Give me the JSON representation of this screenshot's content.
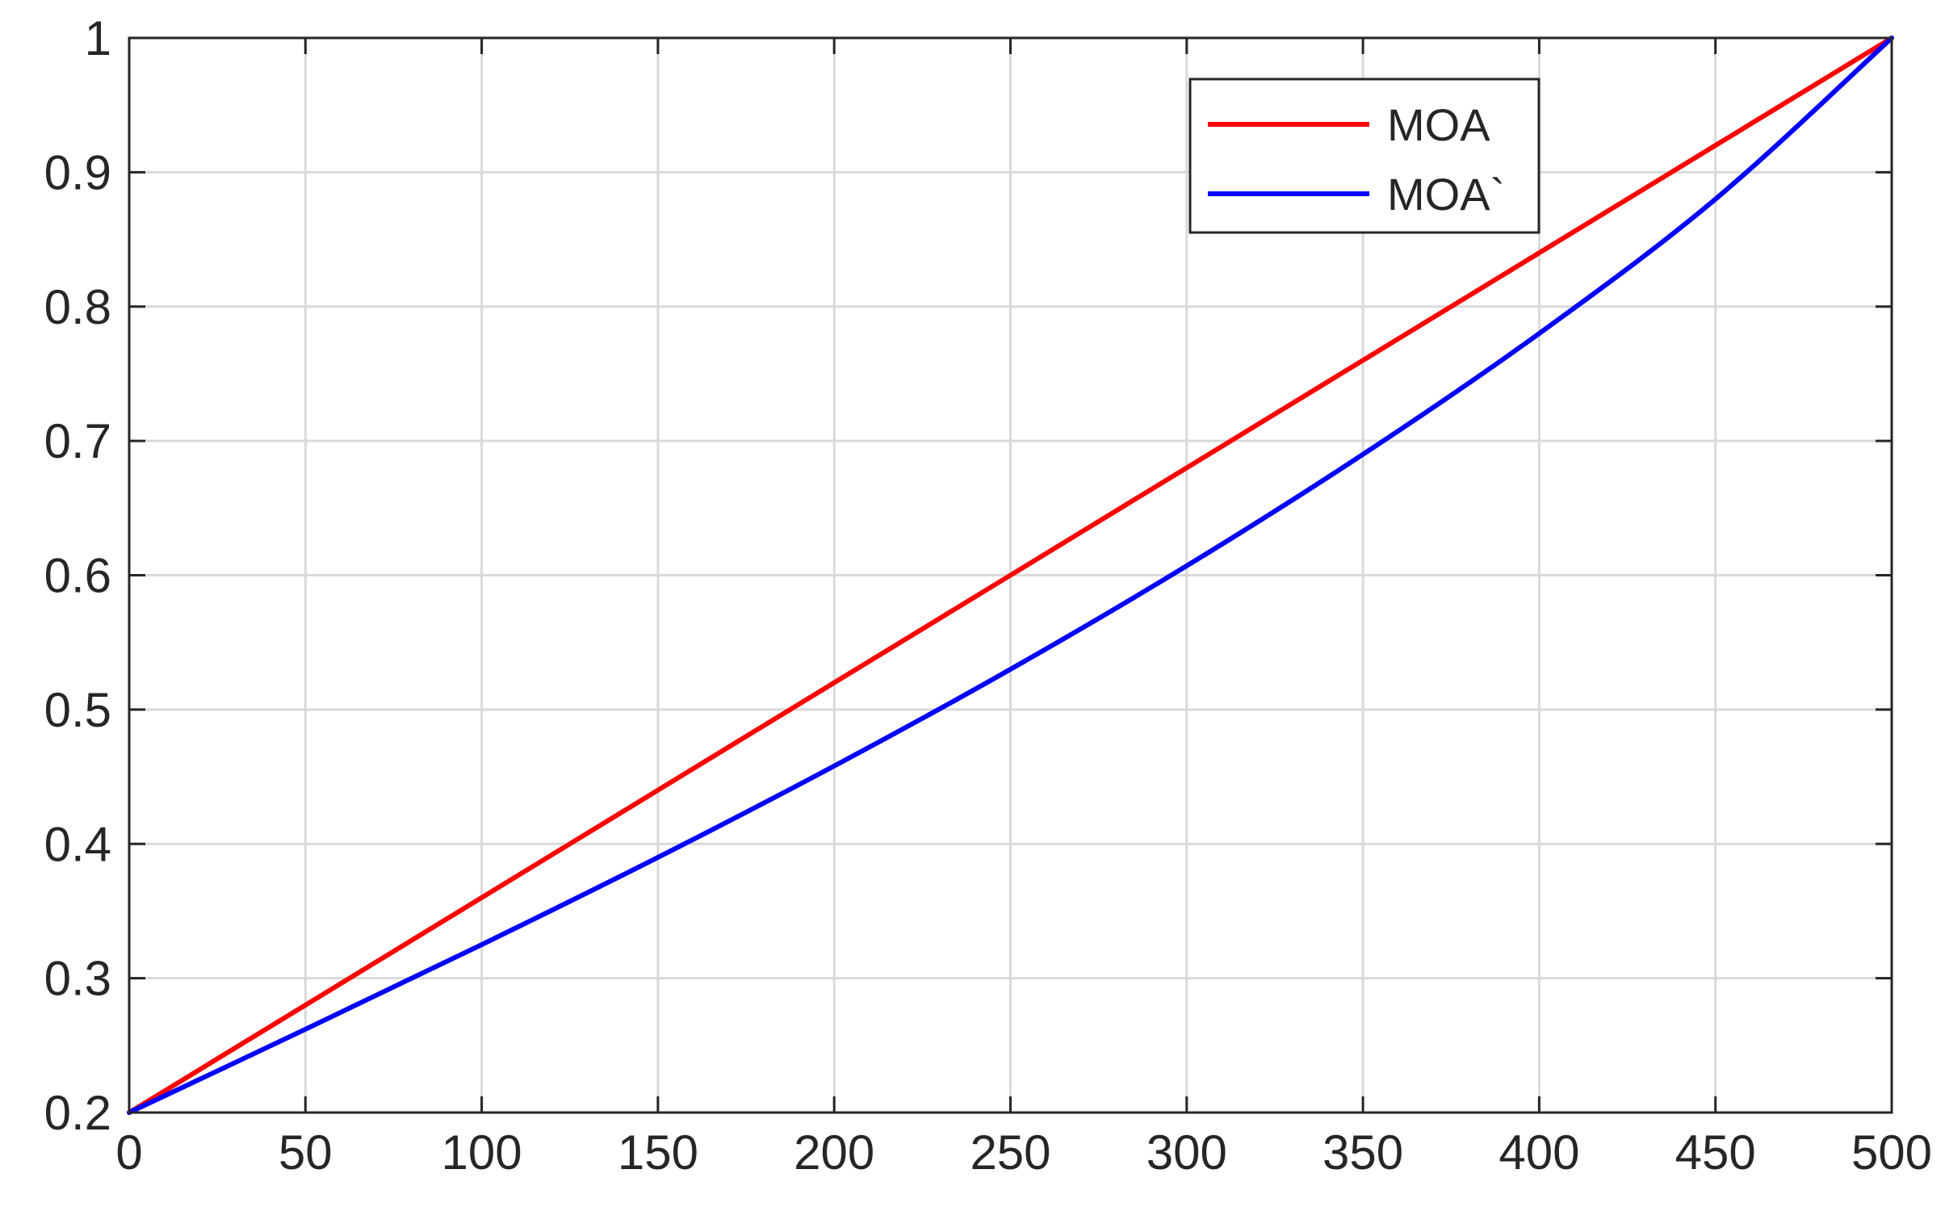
{
  "chart_data": {
    "type": "line",
    "title": "",
    "xlabel": "",
    "ylabel": "",
    "xlim": [
      0,
      500
    ],
    "ylim": [
      0.2,
      1
    ],
    "xticks": [
      0,
      50,
      100,
      150,
      200,
      250,
      300,
      350,
      400,
      450,
      500
    ],
    "xtick_labels": [
      "0",
      "50",
      "100",
      "150",
      "200",
      "250",
      "300",
      "350",
      "400",
      "450",
      "500"
    ],
    "yticks": [
      0.2,
      0.3,
      0.4,
      0.5,
      0.6,
      0.7,
      0.8,
      0.9,
      1
    ],
    "ytick_labels": [
      "0.2",
      "0.3",
      "0.4",
      "0.5",
      "0.6",
      "0.7",
      "0.8",
      "0.9",
      "1"
    ],
    "grid": true,
    "legend_position": "top-right",
    "x": [
      0,
      50,
      100,
      150,
      200,
      250,
      300,
      350,
      400,
      450,
      500
    ],
    "series": [
      {
        "name": "MOA",
        "color": "#ff0000",
        "values": [
          0.2,
          0.28,
          0.36,
          0.44,
          0.52,
          0.6,
          0.68,
          0.76,
          0.84,
          0.92,
          1.0
        ]
      },
      {
        "name": "MOA`",
        "color": "#0000ff",
        "values": [
          0.2,
          0.262,
          0.325,
          0.39,
          0.458,
          0.53,
          0.607,
          0.69,
          0.78,
          0.88,
          1.0
        ]
      }
    ]
  }
}
